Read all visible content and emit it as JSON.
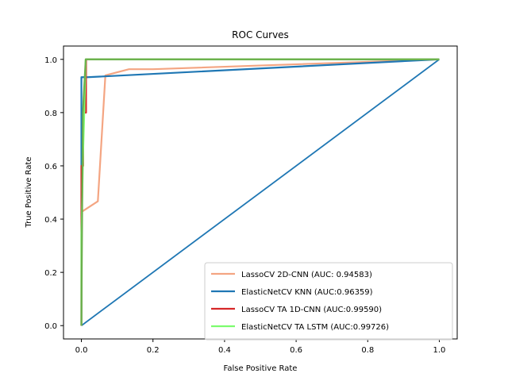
{
  "chart_data": {
    "type": "line",
    "title": "ROC Curves",
    "xlabel": "False Positive Rate",
    "ylabel": "True Positive Rate",
    "xlim": [
      -0.05,
      1.05
    ],
    "ylim": [
      -0.05,
      1.05
    ],
    "x_ticks": [
      "0.0",
      "0.2",
      "0.4",
      "0.6",
      "0.8",
      "1.0"
    ],
    "y_ticks": [
      "0.0",
      "0.2",
      "0.4",
      "0.6",
      "0.8",
      "1.0"
    ],
    "grid": false,
    "legend_position": "lower-right",
    "diagonal": {
      "x": [
        0,
        1
      ],
      "y": [
        0,
        1
      ],
      "color": "#1f77b4"
    },
    "series": [
      {
        "name": "LassoCV 2D-CNN (AUC: 0.94583)",
        "color": "#f4a582",
        "x": [
          0.0,
          0.0,
          0.004,
          0.046,
          0.067,
          0.133,
          0.2,
          1.0
        ],
        "y": [
          0.0,
          0.43,
          0.43,
          0.467,
          0.94,
          0.963,
          0.963,
          1.0
        ]
      },
      {
        "name": "ElasticNetCV KNN (AUC:0.96359)",
        "color": "#1f77b4",
        "x": [
          0.0,
          0.0,
          0.0,
          0.018,
          1.0
        ],
        "y": [
          0.0,
          0.8,
          0.933,
          0.933,
          1.0
        ]
      },
      {
        "name": "LassoCV TA 1D-CNN (AUC:0.99590)",
        "color": "#d62728",
        "x": [
          0.0,
          0.0,
          0.005,
          0.005,
          0.013,
          0.013,
          0.015,
          0.015,
          1.0
        ],
        "y": [
          0.0,
          0.6,
          0.6,
          0.8,
          0.8,
          1.0,
          1.0,
          1.0,
          1.0
        ]
      },
      {
        "name": "ElasticNetCV TA LSTM (AUC:0.99726)",
        "color": "#7cfc6e",
        "x": [
          0.0,
          0.0,
          0.005,
          0.008,
          0.012,
          0.014,
          0.014,
          1.0
        ],
        "y": [
          0.0,
          0.34,
          0.66,
          0.8,
          1.0,
          1.0,
          1.0,
          1.0
        ]
      },
      {
        "name": "",
        "color": "#6ab04c",
        "x": [
          0.0,
          0.004,
          0.012,
          1.0
        ],
        "y": [
          0.0,
          0.8,
          1.0,
          1.0
        ]
      }
    ]
  }
}
